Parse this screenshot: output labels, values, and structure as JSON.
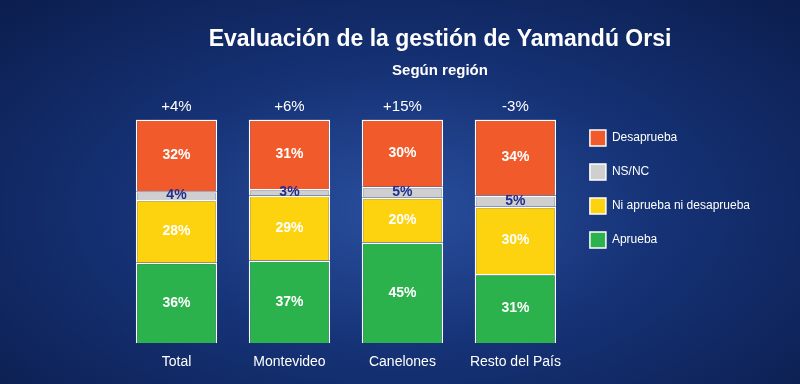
{
  "chart_data": {
    "type": "bar",
    "title": "Evaluación de la gestión de Yamandú Orsi",
    "subtitle": "Según región",
    "categories": [
      "Total",
      "Montevideo",
      "Canelones",
      "Resto del País"
    ],
    "series": [
      {
        "name": "Aprueba",
        "color": "#2bb24c",
        "values": [
          36,
          37,
          45,
          31
        ],
        "value_labels": [
          "36%",
          "37%",
          "45%",
          "31%"
        ]
      },
      {
        "name": "Ni aprueba ni desaprueba",
        "color": "#fdd20f",
        "values": [
          28,
          29,
          20,
          30
        ],
        "value_labels": [
          "28%",
          "29%",
          "20%",
          "30%"
        ]
      },
      {
        "name": "NS/NC",
        "color": "#cfcfcf",
        "values": [
          4,
          3,
          5,
          5
        ],
        "value_labels": [
          "4%",
          "3%",
          "5%",
          "5%"
        ]
      },
      {
        "name": "Desaprueba",
        "color": "#f15a2b",
        "values": [
          32,
          31,
          30,
          34
        ],
        "value_labels": [
          "32%",
          "31%",
          "30%",
          "34%"
        ]
      }
    ],
    "annotations": [
      {
        "category": "Total",
        "text": "+4%"
      },
      {
        "category": "Montevideo",
        "text": "+6%"
      },
      {
        "category": "Canelones",
        "text": "+15%"
      },
      {
        "category": "Resto del País",
        "text": "-3%"
      }
    ],
    "ylim": [
      0,
      100
    ],
    "stacked": true,
    "data_labels": true,
    "tick_labels": "x",
    "grid": false,
    "legend": "right"
  }
}
